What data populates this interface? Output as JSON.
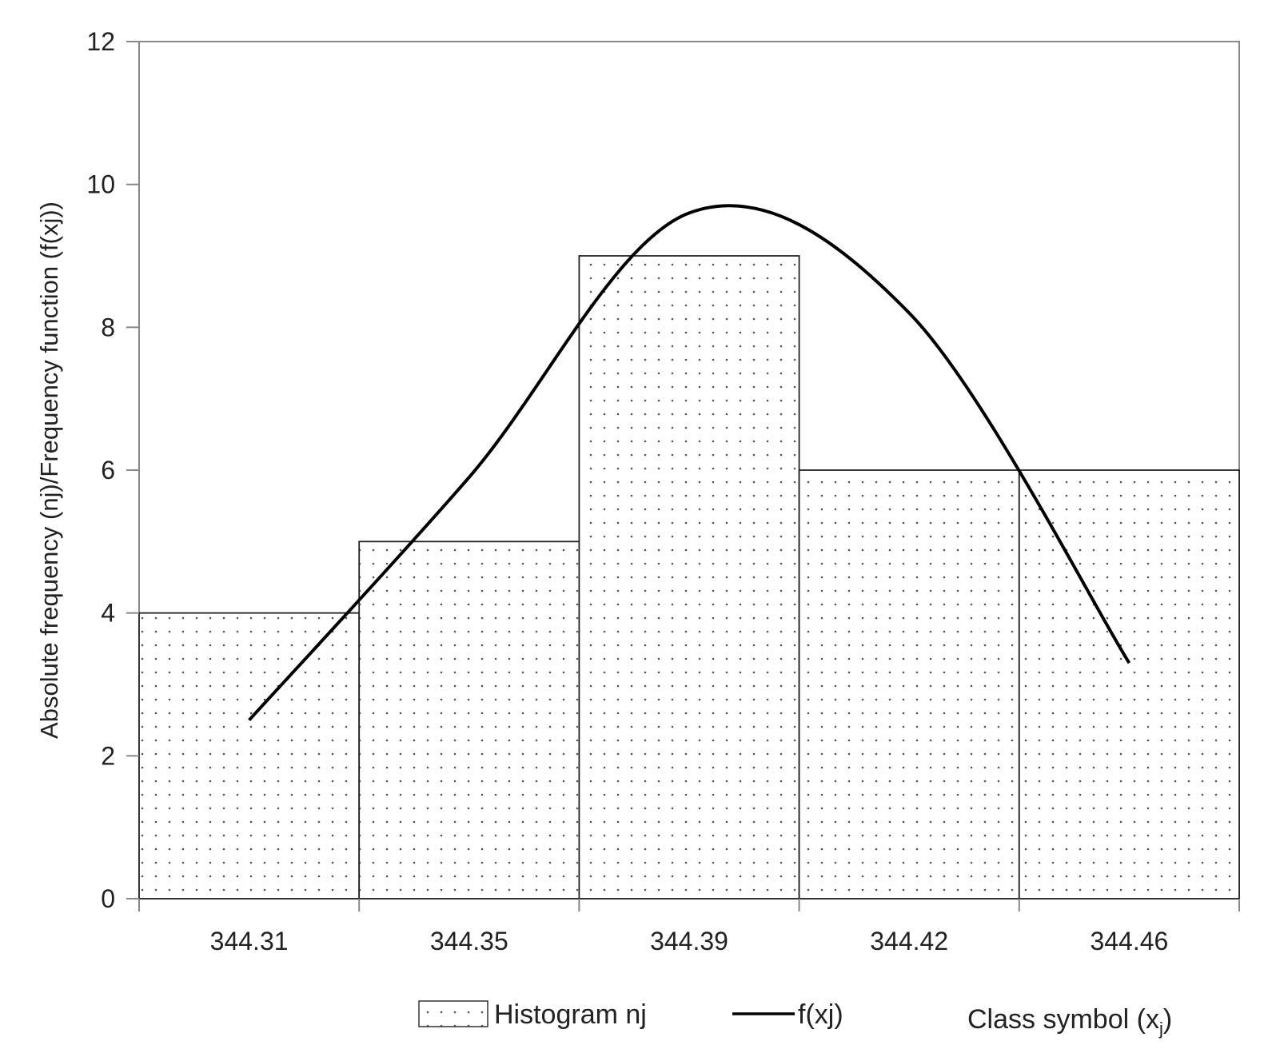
{
  "chart_data": {
    "type": "bar",
    "categories": [
      "344.31",
      "344.35",
      "344.39",
      "344.42",
      "344.46"
    ],
    "series": [
      {
        "name": "Histogram nj",
        "type": "bar",
        "values": [
          4,
          5,
          9,
          6,
          6
        ]
      },
      {
        "name": "f(xj)",
        "type": "line",
        "x": [
          344.31,
          344.35,
          344.39,
          344.42,
          344.46
        ],
        "values": [
          2.5,
          5.9,
          9.6,
          8.2,
          3.3
        ]
      }
    ],
    "ylabel": "Absolute frequency (nj)/Frequency  function (f(xj))",
    "xlabel": "Class symbol",
    "xlabel_sub": "j",
    "xlabel_suffix": ")",
    "ylim": [
      0,
      12
    ],
    "yticks": [
      "0",
      "2",
      "4",
      "6",
      "8",
      "10",
      "12"
    ],
    "grid": false,
    "legend_position": "bottom",
    "colors": {
      "bar_fill": "#ffffff",
      "bar_dots": "#555555",
      "line": "#000000",
      "axis": "#888888"
    }
  }
}
